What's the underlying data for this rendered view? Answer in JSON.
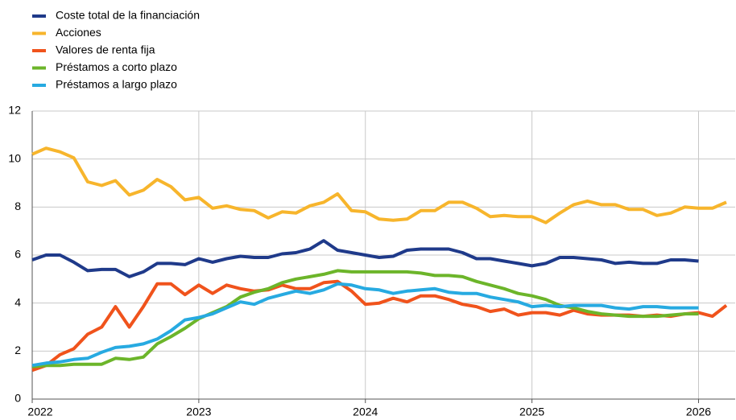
{
  "chart_data": {
    "type": "line",
    "x": [
      2022,
      2022.083,
      2022.167,
      2022.25,
      2022.333,
      2022.417,
      2022.5,
      2022.583,
      2022.667,
      2022.75,
      2022.833,
      2022.917,
      2023,
      2023.083,
      2023.167,
      2023.25,
      2023.333,
      2023.417,
      2023.5,
      2023.583,
      2023.667,
      2023.75,
      2023.833,
      2023.917,
      2024,
      2024.083,
      2024.167,
      2024.25,
      2024.333,
      2024.417,
      2024.5,
      2024.583,
      2024.667,
      2024.75,
      2024.833,
      2024.917,
      2025,
      2025.083,
      2025.167,
      2025.25,
      2025.333,
      2025.417,
      2025.5,
      2025.583,
      2025.667,
      2025.75,
      2025.833,
      2025.917,
      2026,
      2026.083,
      2026.167
    ],
    "series": [
      {
        "name": "Coste total de la financiación",
        "color": "#1f3a8a",
        "values": [
          5.8,
          6.0,
          6.0,
          5.7,
          5.35,
          5.4,
          5.4,
          5.1,
          5.3,
          5.65,
          5.65,
          5.6,
          5.85,
          5.7,
          5.85,
          5.95,
          5.9,
          5.9,
          6.05,
          6.1,
          6.25,
          6.6,
          6.2,
          6.1,
          6.0,
          5.9,
          5.95,
          6.2,
          6.25,
          6.25,
          6.25,
          6.1,
          5.85,
          5.85,
          5.75,
          5.65,
          5.55,
          5.65,
          5.9,
          5.9,
          5.85,
          5.8,
          5.65,
          5.7,
          5.65,
          5.65,
          5.8,
          5.8,
          5.75,
          null,
          null
        ]
      },
      {
        "name": "Acciones",
        "color": "#f7b52c",
        "values": [
          10.2,
          10.45,
          10.3,
          10.05,
          9.05,
          8.9,
          9.1,
          8.5,
          8.7,
          9.15,
          8.85,
          8.3,
          8.4,
          7.95,
          8.05,
          7.9,
          7.85,
          7.55,
          7.8,
          7.75,
          8.05,
          8.2,
          8.55,
          7.85,
          7.8,
          7.5,
          7.45,
          7.5,
          7.85,
          7.85,
          8.2,
          8.2,
          7.95,
          7.6,
          7.65,
          7.6,
          7.6,
          7.35,
          7.75,
          8.1,
          8.25,
          8.1,
          8.1,
          7.9,
          7.9,
          7.65,
          7.75,
          8.0,
          7.95,
          7.95,
          8.2
        ]
      },
      {
        "name": "Valores de renta fija",
        "color": "#f0531c",
        "values": [
          1.2,
          1.4,
          1.85,
          2.1,
          2.7,
          3.0,
          3.85,
          3.0,
          3.85,
          4.8,
          4.8,
          4.35,
          4.75,
          4.4,
          4.75,
          4.6,
          4.5,
          4.55,
          4.75,
          4.6,
          4.6,
          4.85,
          4.9,
          4.5,
          3.95,
          4.0,
          4.2,
          4.05,
          4.3,
          4.3,
          4.15,
          3.95,
          3.85,
          3.65,
          3.75,
          3.5,
          3.6,
          3.6,
          3.5,
          3.7,
          3.55,
          3.5,
          3.5,
          3.5,
          3.45,
          3.5,
          3.45,
          3.55,
          3.6,
          3.45,
          3.9
        ]
      },
      {
        "name": "Préstamos a corto plazo",
        "color": "#6cb52a",
        "values": [
          1.35,
          1.4,
          1.4,
          1.45,
          1.45,
          1.45,
          1.7,
          1.65,
          1.75,
          2.3,
          2.6,
          2.95,
          3.35,
          3.6,
          3.85,
          4.25,
          4.45,
          4.6,
          4.85,
          5.0,
          5.1,
          5.2,
          5.35,
          5.3,
          5.3,
          5.3,
          5.3,
          5.3,
          5.25,
          5.15,
          5.15,
          5.1,
          4.9,
          4.75,
          4.6,
          4.4,
          4.3,
          4.15,
          3.9,
          3.8,
          3.65,
          3.55,
          3.5,
          3.45,
          3.45,
          3.45,
          3.5,
          3.55,
          3.55,
          null,
          null
        ]
      },
      {
        "name": "Préstamos a largo plazo",
        "color": "#27aae1",
        "values": [
          1.4,
          1.5,
          1.55,
          1.65,
          1.7,
          1.95,
          2.15,
          2.2,
          2.3,
          2.5,
          2.85,
          3.3,
          3.4,
          3.55,
          3.8,
          4.05,
          3.95,
          4.2,
          4.35,
          4.5,
          4.4,
          4.55,
          4.8,
          4.75,
          4.6,
          4.55,
          4.4,
          4.5,
          4.55,
          4.6,
          4.45,
          4.4,
          4.4,
          4.25,
          4.15,
          4.05,
          3.85,
          3.9,
          3.85,
          3.9,
          3.9,
          3.9,
          3.8,
          3.75,
          3.85,
          3.85,
          3.8,
          3.8,
          3.8,
          null,
          null
        ]
      }
    ],
    "xlim": [
      2022,
      2026.22
    ],
    "xticks": [
      2022,
      2023,
      2024,
      2025,
      2026
    ],
    "ylim": [
      0,
      12
    ],
    "yticks": [
      0,
      2,
      4,
      6,
      8,
      10,
      12
    ],
    "grid": true,
    "legend": "top-left"
  }
}
